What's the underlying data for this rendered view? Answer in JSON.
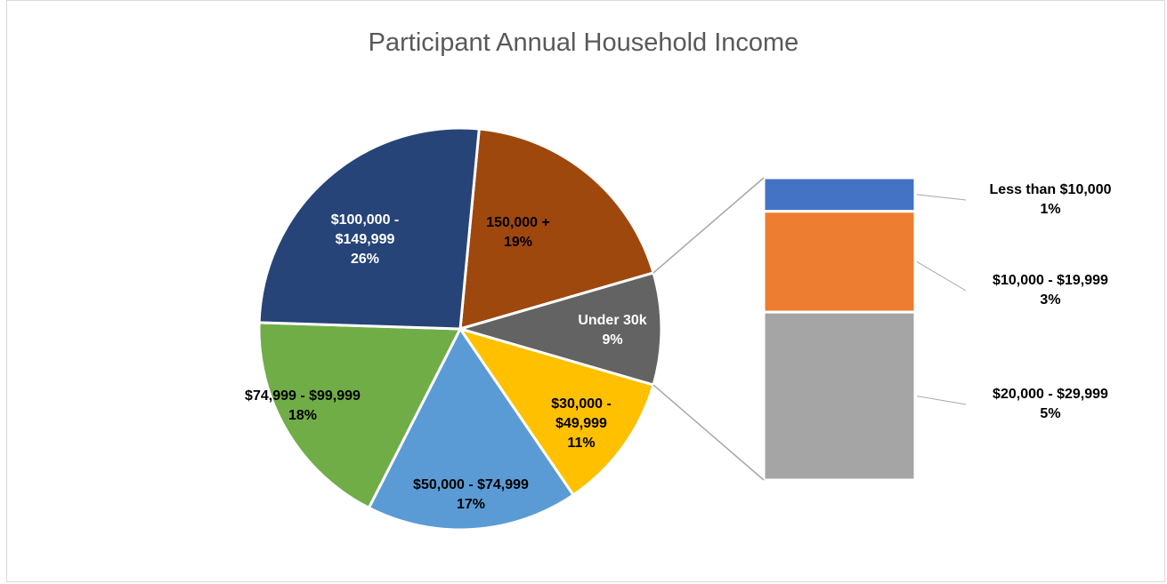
{
  "chart_data": [
    {
      "type": "pie",
      "title": "Participant Annual Household Income",
      "categories": [
        "150,000 +",
        "Under 30k",
        "$30,000 - $49,999",
        "$50,000 - $74,999",
        "$74,999 - $99,999",
        "$100,000 - $149,999"
      ],
      "values": [
        19,
        9,
        11,
        17,
        18,
        26
      ],
      "value_labels": [
        "19%",
        "9%",
        "11%",
        "17%",
        "18%",
        "26%"
      ],
      "colors": [
        "#9e480e",
        "#636363",
        "#ffc000",
        "#5b9bd5",
        "#70ad47",
        "#264478"
      ]
    },
    {
      "type": "bar",
      "categories": [
        "Less than $10,000",
        "$10,000 - $19,999",
        "$20,000 - $29,999"
      ],
      "values": [
        1,
        3,
        5
      ],
      "value_labels": [
        "1%",
        "3%",
        "5%"
      ],
      "colors": [
        "#4472c4",
        "#ed7d31",
        "#a5a5a5"
      ]
    }
  ]
}
